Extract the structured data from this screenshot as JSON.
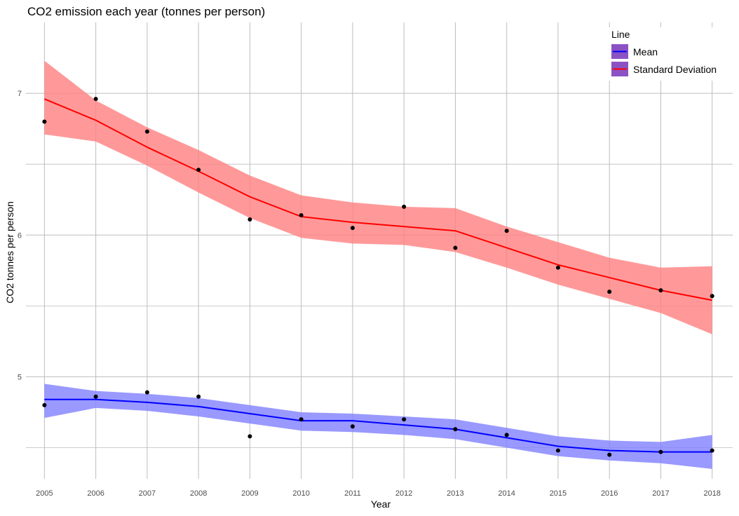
{
  "chart_data": {
    "type": "line",
    "title": "CO2 emission each year (tonnes per person)",
    "xlabel": "Year",
    "ylabel": "CO2 tonnes per person",
    "x": [
      2005,
      2006,
      2007,
      2008,
      2009,
      2010,
      2011,
      2012,
      2013,
      2014,
      2015,
      2016,
      2017,
      2018
    ],
    "xlim": [
      2004.64,
      2018.4
    ],
    "ylim": [
      4.28,
      7.5
    ],
    "y_ticks": [
      5,
      6,
      7
    ],
    "y_minor_ticks": [
      4.5,
      5.5,
      6.5
    ],
    "grid": true,
    "legend": {
      "title": "Line",
      "position": "top-right",
      "entries": [
        "Mean",
        "Standard Deviation"
      ]
    },
    "series": [
      {
        "name": "Mean",
        "color": "#0000ff",
        "band_color": "#7f7fff",
        "points": [
          4.8,
          4.86,
          4.89,
          4.86,
          4.58,
          4.7,
          4.65,
          4.7,
          4.63,
          4.59,
          4.48,
          4.45,
          4.47,
          4.48
        ],
        "smooth": [
          4.84,
          4.84,
          4.82,
          4.79,
          4.74,
          4.69,
          4.69,
          4.66,
          4.63,
          4.57,
          4.51,
          4.48,
          4.47,
          4.47
        ],
        "band_upper": [
          4.95,
          4.9,
          4.88,
          4.85,
          4.8,
          4.75,
          4.74,
          4.72,
          4.7,
          4.64,
          4.58,
          4.55,
          4.54,
          4.59
        ],
        "band_lower": [
          4.71,
          4.78,
          4.76,
          4.72,
          4.67,
          4.62,
          4.61,
          4.59,
          4.56,
          4.5,
          4.44,
          4.41,
          4.39,
          4.35
        ]
      },
      {
        "name": "Standard Deviation",
        "color": "#ff0000",
        "band_color": "#ff7f7f",
        "points": [
          6.8,
          6.96,
          6.73,
          6.46,
          6.11,
          6.14,
          6.05,
          6.2,
          5.91,
          6.03,
          5.77,
          5.6,
          5.61,
          5.57
        ],
        "smooth": [
          6.96,
          6.81,
          6.62,
          6.45,
          6.27,
          6.13,
          6.09,
          6.06,
          6.03,
          5.91,
          5.79,
          5.7,
          5.61,
          5.54
        ],
        "band_upper": [
          7.23,
          6.95,
          6.76,
          6.6,
          6.42,
          6.28,
          6.23,
          6.2,
          6.19,
          6.06,
          5.95,
          5.84,
          5.77,
          5.78
        ],
        "band_lower": [
          6.71,
          6.66,
          6.49,
          6.3,
          6.12,
          5.98,
          5.94,
          5.93,
          5.88,
          5.77,
          5.65,
          5.55,
          5.45,
          5.3
        ]
      }
    ]
  }
}
